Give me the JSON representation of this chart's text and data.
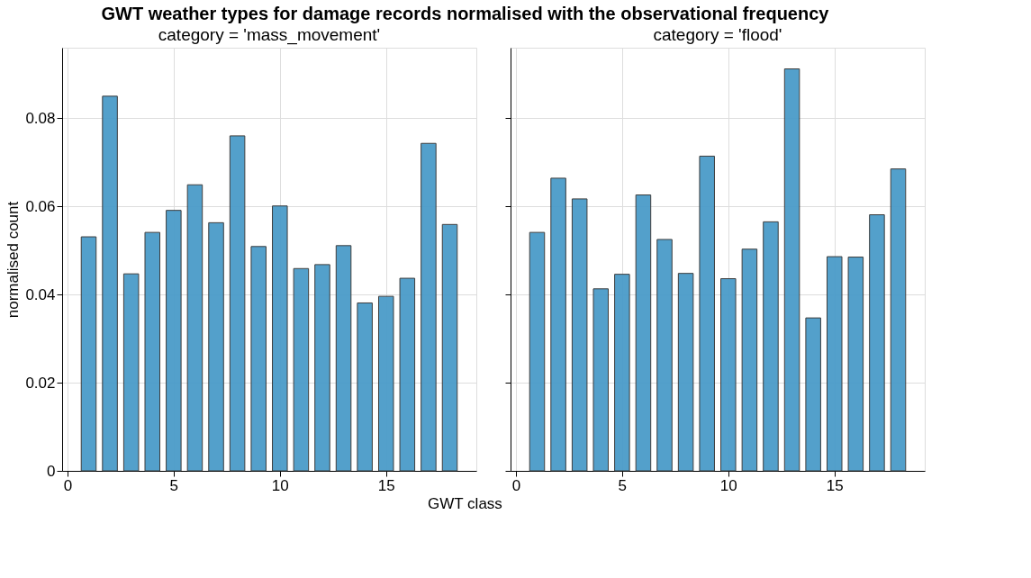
{
  "chart_data": [
    {
      "type": "bar",
      "title": "GWT weather types for damage records normalised with the observational frequency",
      "subtitle": "category = 'mass_movement'",
      "xlabel": "GWT class",
      "ylabel": "normalised count",
      "x": [
        1,
        2,
        3,
        4,
        5,
        6,
        7,
        8,
        9,
        10,
        11,
        12,
        13,
        14,
        15,
        16,
        17,
        18
      ],
      "series": [
        {
          "color": "#4a9bc9",
          "values": [
            0.0531,
            0.085,
            0.0447,
            0.0541,
            0.0591,
            0.0649,
            0.0563,
            0.076,
            0.0509,
            0.0601,
            0.0459,
            0.0468,
            0.0511,
            0.0381,
            0.0396,
            0.0437,
            0.0743,
            0.0559
          ]
        }
      ],
      "xlim": [
        -0.25,
        19.25
      ],
      "ylim": [
        0,
        0.096
      ],
      "xticks": [
        0,
        5,
        10,
        15
      ],
      "yticks": [
        0,
        0.02,
        0.04,
        0.06,
        0.08
      ],
      "grid": true
    },
    {
      "type": "bar",
      "subtitle": "category = 'flood'",
      "x": [
        1,
        2,
        3,
        4,
        5,
        6,
        7,
        8,
        9,
        10,
        11,
        12,
        13,
        14,
        15,
        16,
        17,
        18
      ],
      "series": [
        {
          "color": "#4a9bc9",
          "values": [
            0.0541,
            0.0664,
            0.0617,
            0.0413,
            0.0446,
            0.0626,
            0.0525,
            0.0448,
            0.0714,
            0.0436,
            0.0503,
            0.0565,
            0.0912,
            0.0347,
            0.0486,
            0.0485,
            0.0581,
            0.0685
          ]
        }
      ],
      "xlim": [
        -0.25,
        19.25
      ],
      "ylim": [
        0,
        0.096
      ],
      "xticks": [
        0,
        5,
        10,
        15
      ],
      "yticks": [
        0,
        0.02,
        0.04,
        0.06,
        0.08
      ],
      "grid": true,
      "tick_labels": "x"
    }
  ]
}
